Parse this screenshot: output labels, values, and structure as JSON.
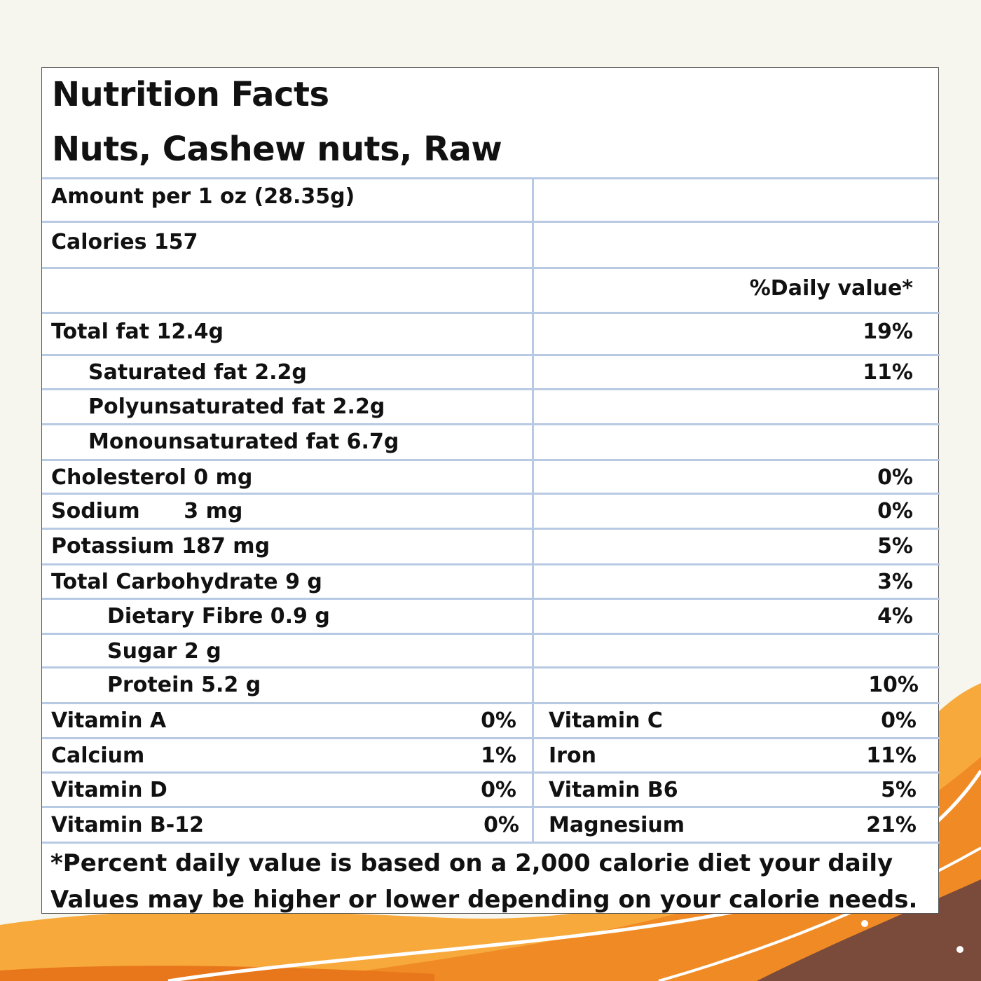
{
  "label": {
    "title": "Nutrition Facts",
    "product": "Nuts, Cashew nuts, Raw",
    "serving": "Amount per 1 oz (28.35g)",
    "calories": "Calories 157",
    "dv_header": "%Daily value*",
    "nutrients": [
      {
        "name": "Total fat 12.4g",
        "dv": "19%"
      },
      {
        "name": "Saturated fat 2.2g",
        "dv": "11%"
      },
      {
        "name": "Polyunsaturated fat 2.2g",
        "dv": ""
      },
      {
        "name": "Monounsaturated fat 6.7g",
        "dv": ""
      },
      {
        "name": "Cholesterol 0 mg",
        "dv": "0%"
      },
      {
        "name": "Sodium      3 mg",
        "dv": "0%"
      },
      {
        "name": "Potassium 187 mg",
        "dv": "5%"
      },
      {
        "name": "Total Carbohydrate 9 g",
        "dv": "3%"
      },
      {
        "name": "Dietary Fibre 0.9 g",
        "dv": "4%"
      },
      {
        "name": "Sugar 2 g",
        "dv": ""
      },
      {
        "name": "Protein 5.2 g",
        "dv": "10%"
      }
    ],
    "vitamins": [
      {
        "left_name": "Vitamin A",
        "left_dv": "0%",
        "right_name": "Vitamin C",
        "right_dv": "0%"
      },
      {
        "left_name": "Calcium",
        "left_dv": "1%",
        "right_name": "Iron",
        "right_dv": "11%"
      },
      {
        "left_name": "Vitamin D",
        "left_dv": "0%",
        "right_name": "Vitamin B6",
        "right_dv": "5%"
      },
      {
        "left_name": "Vitamin B-12",
        "left_dv": "0%",
        "right_name": "Magnesium",
        "right_dv": "21%"
      }
    ],
    "footnote_line1": "*Percent daily value is based on a 2,000 calorie diet your daily",
    "footnote_line2": "Values may be higher or lower depending on your calorie needs."
  },
  "colors": {
    "background": "#f6f6ef",
    "grid_line": "#b8c9e4",
    "orange_light": "#f7a93b",
    "orange_mid": "#f08a24",
    "orange_dark": "#e8761a",
    "brown": "#7a4a3a"
  }
}
